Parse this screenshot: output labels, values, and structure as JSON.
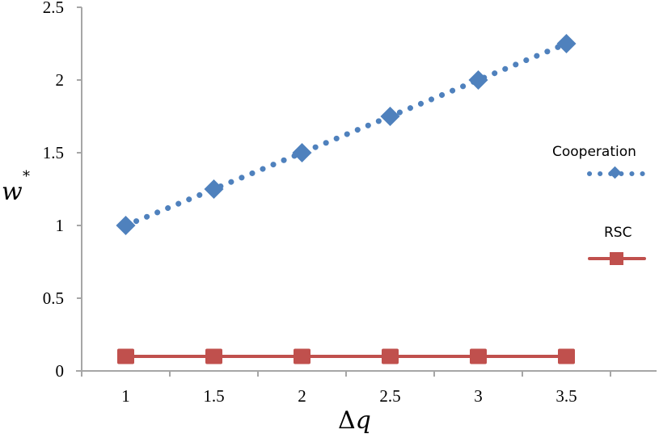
{
  "chart_data": {
    "type": "line",
    "title": "",
    "xlabel": "Δq",
    "ylabel": "w*",
    "categories": [
      "1",
      "1.5",
      "2",
      "2.5",
      "3",
      "3.5"
    ],
    "x": [
      1,
      1.5,
      2,
      2.5,
      3,
      3.5
    ],
    "series": [
      {
        "name": "Cooperation",
        "values": [
          1.0,
          1.25,
          1.5,
          1.75,
          2.0,
          2.25
        ],
        "color": "#4F81BD",
        "line_style": "dotted",
        "marker": "diamond"
      },
      {
        "name": "RSC",
        "values": [
          0.1,
          0.1,
          0.1,
          0.1,
          0.1,
          0.1
        ],
        "color": "#C0504D",
        "line_style": "solid",
        "marker": "square"
      }
    ],
    "ylim": [
      0,
      2.5
    ],
    "yticks": [
      "0",
      "0.5",
      "1",
      "1.5",
      "2",
      "2.5"
    ],
    "grid": false,
    "legend_position": "right"
  },
  "axes": {
    "y_ticks": [
      "0",
      "0.5",
      "1",
      "1.5",
      "2",
      "2.5"
    ],
    "x_ticks": [
      "1",
      "1.5",
      "2",
      "2.5",
      "3",
      "3.5"
    ],
    "x_title_delta": "Δ",
    "x_title_var": "q",
    "y_title_var": "w",
    "y_title_sup": "*"
  },
  "legend": {
    "items": [
      {
        "label": "Cooperation",
        "color": "#4F81BD"
      },
      {
        "label": "RSC",
        "color": "#C0504D"
      }
    ]
  },
  "colors": {
    "axis": "#A6A6A6",
    "cooperation": "#4F81BD",
    "rsc": "#C0504D"
  }
}
